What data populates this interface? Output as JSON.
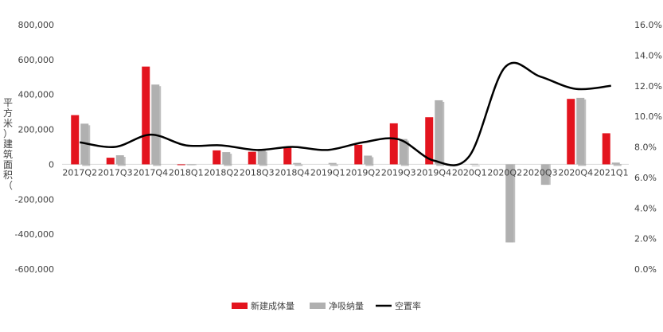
{
  "chart_data": {
    "type": "bar",
    "categories": [
      "2017Q2",
      "2017Q3",
      "2017Q4",
      "2018Q1",
      "2018Q2",
      "2018Q3",
      "2018Q4",
      "2019Q1",
      "2019Q2",
      "2019Q3",
      "2019Q4",
      "2020Q1",
      "2020Q2",
      "2020Q3",
      "2020Q4",
      "2021Q1"
    ],
    "series": [
      {
        "name": "新建成体量",
        "type": "bar",
        "axis": "left",
        "color": "#e3141e",
        "values": [
          282000,
          38000,
          560000,
          -2000,
          80000,
          72000,
          100000,
          0,
          112000,
          235000,
          270000,
          0,
          0,
          0,
          375000,
          178000
        ]
      },
      {
        "name": "净吸纳量",
        "type": "bar",
        "axis": "left",
        "color": "#b0b0b0",
        "values": [
          233000,
          52000,
          457000,
          -4000,
          70000,
          82000,
          8000,
          8000,
          50000,
          145000,
          367000,
          3000,
          -447000,
          -117000,
          381000,
          10000
        ]
      },
      {
        "name": "空置率",
        "type": "line",
        "axis": "right",
        "color": "#000000",
        "values": [
          8.3,
          8.0,
          8.8,
          8.1,
          8.1,
          7.8,
          8.0,
          7.8,
          8.3,
          8.5,
          7.1,
          7.4,
          13.2,
          12.6,
          11.8,
          12.0
        ]
      }
    ],
    "ylabel": "平方米）建筑面积（",
    "y_left": {
      "min": -600000,
      "max": 800000,
      "step": 200000,
      "tick_labels": [
        "-600,000",
        "-400,000",
        "-200,000",
        "0",
        "200,000",
        "400,000",
        "600,000",
        "800,000"
      ]
    },
    "y_right": {
      "min": 0,
      "max": 16,
      "step": 2,
      "tick_labels": [
        "0.0%",
        "2.0%",
        "4.0%",
        "6.0%",
        "8.0%",
        "10.0%",
        "12.0%",
        "14.0%",
        "16.0%"
      ]
    },
    "grid": false,
    "legend_position": "bottom"
  }
}
